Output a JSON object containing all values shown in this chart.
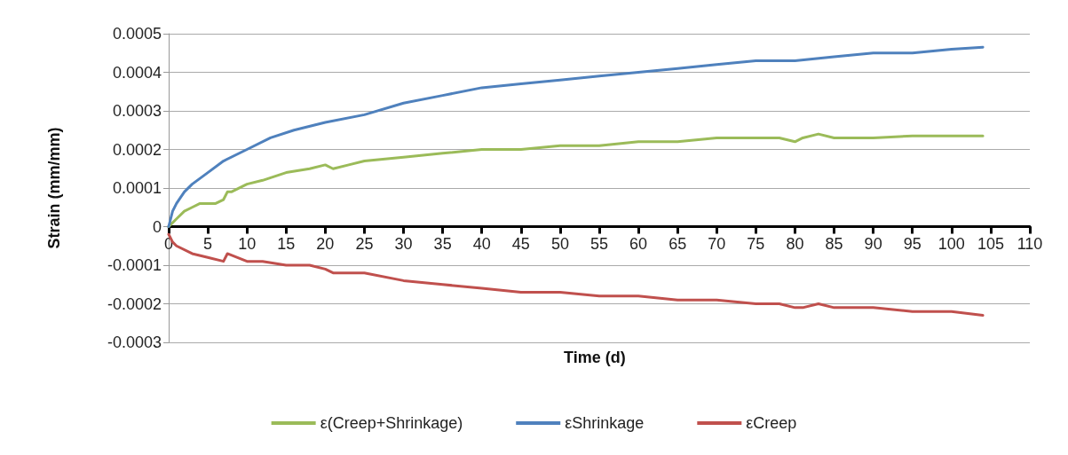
{
  "chart_data": {
    "type": "line",
    "xlabel": "Time (d)",
    "ylabel": "Strain (mm/mm)",
    "xlim": [
      0,
      110
    ],
    "xticks": [
      0,
      5,
      10,
      15,
      20,
      25,
      30,
      35,
      40,
      45,
      50,
      55,
      60,
      65,
      70,
      75,
      80,
      85,
      90,
      95,
      100,
      105,
      110
    ],
    "ylim": [
      -0.0003,
      0.0005
    ],
    "yticks": [
      -0.0003,
      -0.0002,
      -0.0001,
      0,
      0.0001,
      0.0002,
      0.0003,
      0.0004,
      0.0005
    ],
    "grid": "y",
    "legend": "bottom",
    "marker": "none",
    "line_style": "solid",
    "series": [
      {
        "name": "ε(Creep+Shrinkage)",
        "color": "#9bbb59",
        "x": [
          0,
          0.5,
          1,
          2,
          3,
          4,
          5,
          6,
          7,
          7.5,
          8,
          10,
          12,
          15,
          18,
          20,
          21,
          23,
          25,
          30,
          35,
          40,
          45,
          50,
          55,
          60,
          65,
          70,
          75,
          78,
          80,
          81,
          83,
          85,
          90,
          95,
          100,
          104
        ],
        "values": [
          0,
          1e-05,
          2e-05,
          4e-05,
          5e-05,
          6e-05,
          6e-05,
          6e-05,
          7e-05,
          9e-05,
          9e-05,
          0.00011,
          0.00012,
          0.00014,
          0.00015,
          0.00016,
          0.00015,
          0.00016,
          0.00017,
          0.00018,
          0.00019,
          0.0002,
          0.0002,
          0.00021,
          0.00021,
          0.00022,
          0.00022,
          0.00023,
          0.00023,
          0.00023,
          0.00022,
          0.00023,
          0.00024,
          0.00023,
          0.00023,
          0.000235,
          0.000235,
          0.000235
        ]
      },
      {
        "name": "εShrinkage",
        "color": "#4f81bd",
        "x": [
          0,
          0.5,
          1,
          2,
          3,
          5,
          7,
          10,
          13,
          16,
          20,
          25,
          30,
          35,
          40,
          45,
          50,
          55,
          60,
          65,
          70,
          75,
          80,
          85,
          90,
          95,
          100,
          104
        ],
        "values": [
          0,
          4e-05,
          6e-05,
          9e-05,
          0.00011,
          0.00014,
          0.00017,
          0.0002,
          0.00023,
          0.00025,
          0.00027,
          0.00029,
          0.00032,
          0.00034,
          0.00036,
          0.00037,
          0.00038,
          0.00039,
          0.0004,
          0.00041,
          0.00042,
          0.00043,
          0.00043,
          0.00044,
          0.00045,
          0.00045,
          0.00046,
          0.000465
        ]
      },
      {
        "name": "εCreep",
        "color": "#c0504d",
        "x": [
          0,
          0.5,
          1,
          3,
          5,
          7,
          7.5,
          10,
          12,
          15,
          18,
          20,
          21,
          25,
          30,
          35,
          40,
          45,
          50,
          55,
          60,
          65,
          70,
          75,
          78,
          80,
          81,
          83,
          85,
          90,
          95,
          100,
          104
        ],
        "values": [
          -2e-05,
          -4e-05,
          -5e-05,
          -7e-05,
          -8e-05,
          -9e-05,
          -7e-05,
          -9e-05,
          -9e-05,
          -0.0001,
          -0.0001,
          -0.00011,
          -0.00012,
          -0.00012,
          -0.00014,
          -0.00015,
          -0.00016,
          -0.00017,
          -0.00017,
          -0.00018,
          -0.00018,
          -0.00019,
          -0.00019,
          -0.0002,
          -0.0002,
          -0.00021,
          -0.00021,
          -0.0002,
          -0.00021,
          -0.00021,
          -0.00022,
          -0.00022,
          -0.00023
        ]
      }
    ]
  }
}
